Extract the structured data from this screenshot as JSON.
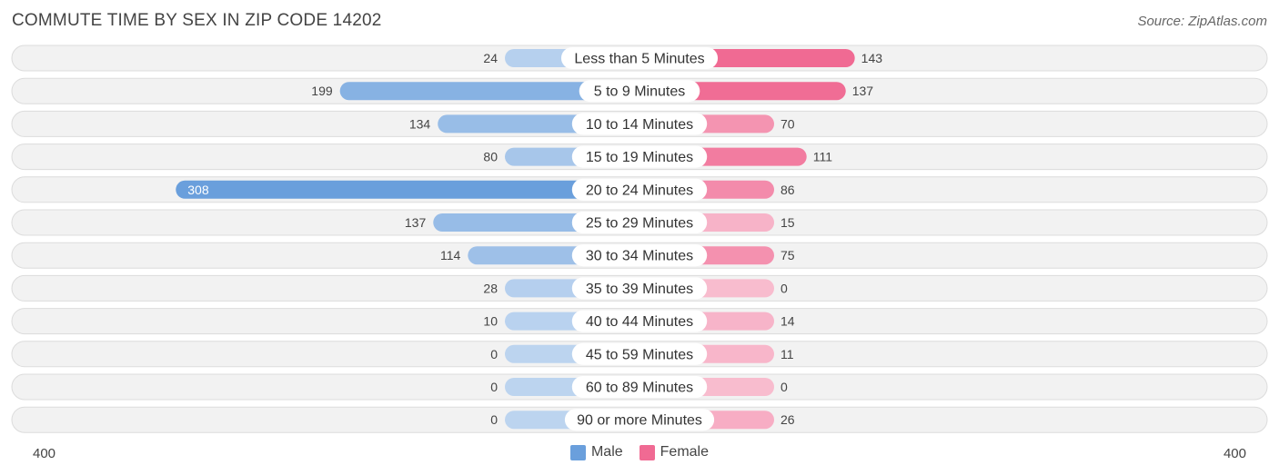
{
  "header": {
    "title": "COMMUTE TIME BY SEX IN ZIP CODE 14202",
    "source": "Source: ZipAtlas.com"
  },
  "chart_data": {
    "type": "bar",
    "orientation": "horizontal-diverging",
    "title": "COMMUTE TIME BY SEX IN ZIP CODE 14202",
    "categories": [
      "Less than 5 Minutes",
      "5 to 9 Minutes",
      "10 to 14 Minutes",
      "15 to 19 Minutes",
      "20 to 24 Minutes",
      "25 to 29 Minutes",
      "30 to 34 Minutes",
      "35 to 39 Minutes",
      "40 to 44 Minutes",
      "45 to 59 Minutes",
      "60 to 89 Minutes",
      "90 or more Minutes"
    ],
    "series": [
      {
        "name": "Male",
        "color": "#6a9fdc",
        "values": [
          24,
          199,
          134,
          80,
          308,
          137,
          114,
          28,
          10,
          0,
          0,
          0
        ]
      },
      {
        "name": "Female",
        "color": "#f06a93",
        "values": [
          143,
          137,
          70,
          111,
          86,
          15,
          75,
          0,
          14,
          11,
          0,
          26
        ]
      }
    ],
    "xlim": [
      -400,
      400
    ],
    "axis_labels": {
      "left": "400",
      "right": "400"
    },
    "legend_position": "bottom-center"
  }
}
